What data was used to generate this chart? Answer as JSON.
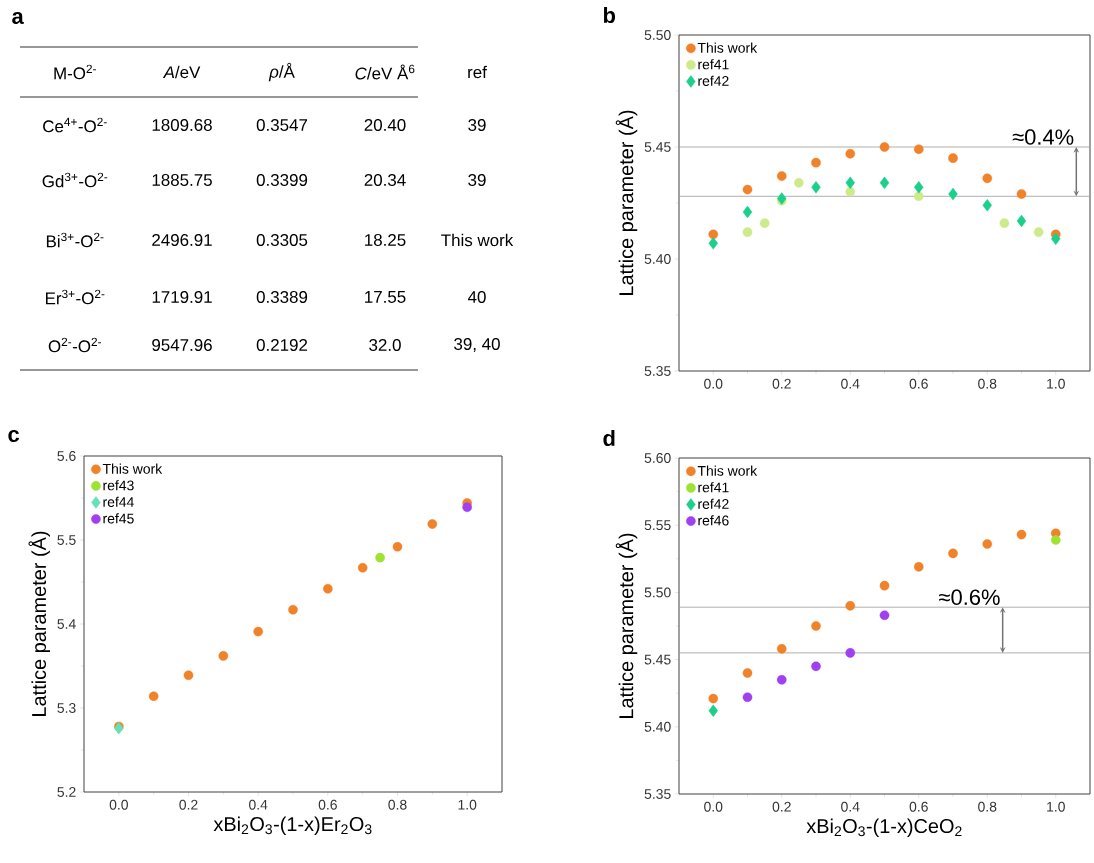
{
  "chart_data": [
    {
      "type": "other",
      "title": "a",
      "categories": [
        "M-O$^{2-}$",
        "*A*/eV",
        "*ρ*/Å",
        "*C*/eV Å$^{6}$",
        "ref"
      ],
      "annotations": [
        "Ce$^{4+}$-O$^{2-}$",
        "1809.68",
        "0.3547",
        "20.40",
        "39",
        "Gd$^{3+}$-O$^{2-}$",
        "1885.75",
        "0.3399",
        "20.34",
        "39",
        "Bi$^{3+}$-O$^{2-}$",
        "2496.91",
        "0.3305",
        "18.25",
        "This work",
        "Er$^{3+}$-O$^{2-}$",
        "1719.91",
        "0.3389",
        "17.55",
        "40",
        "O$^{2-}$-O$^{2-}$",
        "9547.96",
        "0.2192",
        "32.0",
        "39, 40"
      ]
    },
    {
      "type": "scatter",
      "title": "b",
      "ylabel": "Lattice parameter (Å)",
      "xlim": [
        -0.1,
        1.1
      ],
      "ylim": [
        5.35,
        5.5
      ],
      "xticks": [
        {
          "value": 0,
          "label": "0.0"
        },
        {
          "value": 0.2,
          "label": "0.2"
        },
        {
          "value": 0.4,
          "label": "0.4"
        },
        {
          "value": 0.6,
          "label": "0.6"
        },
        {
          "value": 0.8,
          "label": "0.8"
        },
        {
          "value": 1,
          "label": "1.0"
        }
      ],
      "yticks": [
        {
          "value": 5.35,
          "label": "5.35"
        },
        {
          "value": 5.4,
          "label": "5.40"
        },
        {
          "value": 5.45,
          "label": "5.45"
        },
        {
          "value": 5.5,
          "label": "5.50"
        }
      ],
      "legend": "top left",
      "grid": false,
      "ref_lines": [
        {
          "axis": "y",
          "value": 5.45,
          "label": null,
          "color": "#9a9a9a"
        },
        {
          "axis": "y",
          "value": 5.428,
          "label": null,
          "color": "#9a9a9a"
        }
      ],
      "annotations": [
        {
          "text": "≈0.4%",
          "x": 1.06,
          "y": 5.45
        }
      ],
      "series": [
        {
          "name": "This work",
          "color": "#f0822a",
          "marker": "circle",
          "x": [
            0,
            0.1,
            0.2,
            0.3,
            0.4,
            0.5,
            0.6,
            0.7,
            0.8,
            0.9,
            1.0
          ],
          "values": [
            5.411,
            5.431,
            5.437,
            5.443,
            5.447,
            5.45,
            5.449,
            5.445,
            5.436,
            5.429,
            5.411
          ]
        },
        {
          "name": "ref41",
          "color": "#cdeb8b",
          "marker": "circle",
          "x": [
            0.1,
            0.15,
            0.2,
            0.25,
            0.4,
            0.6,
            0.85,
            0.95
          ],
          "values": [
            5.412,
            5.416,
            5.426,
            5.434,
            5.43,
            5.428,
            5.416,
            5.412
          ]
        },
        {
          "name": "ref42",
          "color": "#1ccf8a",
          "marker": "diamond",
          "x": [
            0,
            0.1,
            0.2,
            0.3,
            0.4,
            0.5,
            0.6,
            0.7,
            0.8,
            0.9,
            1.0
          ],
          "values": [
            5.407,
            5.421,
            5.427,
            5.432,
            5.434,
            5.434,
            5.432,
            5.429,
            5.424,
            5.417,
            5.409
          ]
        }
      ]
    },
    {
      "type": "scatter",
      "title": "c",
      "ylabel": "Lattice parameter (Å)",
      "xlabel": "xBi$_{2}$O$_{3}$-(1-x)Er$_{2}$O$_{3}$",
      "xlim": [
        -0.1,
        1.1
      ],
      "ylim": [
        5.2,
        5.6
      ],
      "xticks": [
        {
          "value": 0,
          "label": "0.0"
        },
        {
          "value": 0.2,
          "label": "0.2"
        },
        {
          "value": 0.4,
          "label": "0.4"
        },
        {
          "value": 0.6,
          "label": "0.6"
        },
        {
          "value": 0.8,
          "label": "0.8"
        },
        {
          "value": 1,
          "label": "1.0"
        }
      ],
      "yticks": [
        5.2,
        5.3,
        5.4,
        5.5,
        5.6
      ],
      "legend": "top left",
      "grid": false,
      "series": [
        {
          "name": "This work",
          "color": "#f0822a",
          "marker": "circle",
          "x": [
            0,
            0.1,
            0.2,
            0.3,
            0.4,
            0.5,
            0.6,
            0.7,
            0.8,
            0.9,
            1.0
          ],
          "values": [
            5.278,
            5.314,
            5.339,
            5.362,
            5.391,
            5.417,
            5.442,
            5.467,
            5.492,
            5.519,
            5.544
          ]
        },
        {
          "name": "ref43",
          "color": "#9ee334",
          "marker": "circle",
          "x": [
            0.75
          ],
          "values": [
            5.479
          ]
        },
        {
          "name": "ref44",
          "color": "#66e0b8",
          "marker": "diamond",
          "x": [
            0
          ],
          "values": [
            5.276
          ]
        },
        {
          "name": "ref45",
          "color": "#a040f0",
          "marker": "circle",
          "x": [
            1.0
          ],
          "values": [
            5.539
          ]
        }
      ]
    },
    {
      "type": "scatter",
      "title": "d",
      "ylabel": "Lattice parameter (Å)",
      "xlabel": "xBi$_{2}$O$_{3}$-(1-x)CeO$_{2}$",
      "xlim": [
        -0.1,
        1.1
      ],
      "ylim": [
        5.35,
        5.6
      ],
      "xticks": [
        {
          "value": 0,
          "label": "0.0"
        },
        {
          "value": 0.2,
          "label": "0.2"
        },
        {
          "value": 0.4,
          "label": "0.4"
        },
        {
          "value": 0.6,
          "label": "0.6"
        },
        {
          "value": 0.8,
          "label": "0.8"
        },
        {
          "value": 1,
          "label": "1.0"
        }
      ],
      "yticks": [
        {
          "value": 5.35,
          "label": "5.35"
        },
        {
          "value": 5.4,
          "label": "5.40"
        },
        {
          "value": 5.45,
          "label": "5.45"
        },
        {
          "value": 5.5,
          "label": "5.50"
        },
        {
          "value": 5.55,
          "label": "5.55"
        },
        {
          "value": 5.6,
          "label": "5.60"
        }
      ],
      "legend": "top left",
      "grid": false,
      "ref_lines": [
        {
          "axis": "y",
          "value": 5.489,
          "label": null,
          "color": "#9a9a9a"
        },
        {
          "axis": "y",
          "value": 5.455,
          "label": null,
          "color": "#9a9a9a"
        }
      ],
      "annotations": [
        {
          "text": "≈0.6%",
          "x": 0.845,
          "y": 5.489
        }
      ],
      "series": [
        {
          "name": "This work",
          "color": "#f0822a",
          "marker": "circle",
          "x": [
            0,
            0.1,
            0.2,
            0.3,
            0.4,
            0.5,
            0.6,
            0.7,
            0.8,
            0.9,
            1.0
          ],
          "values": [
            5.421,
            5.44,
            5.458,
            5.475,
            5.49,
            5.505,
            5.519,
            5.529,
            5.536,
            5.543,
            5.544
          ]
        },
        {
          "name": "ref41",
          "color": "#9ee334",
          "marker": "circle",
          "x": [
            1.0
          ],
          "values": [
            5.539
          ]
        },
        {
          "name": "ref42",
          "color": "#1ccf8a",
          "marker": "diamond",
          "x": [
            0
          ],
          "values": [
            5.412
          ]
        },
        {
          "name": "ref46",
          "color": "#a040f0",
          "marker": "circle",
          "x": [
            0.1,
            0.2,
            0.3,
            0.4,
            0.5
          ],
          "values": [
            5.422,
            5.435,
            5.445,
            5.455,
            5.483
          ]
        }
      ]
    }
  ]
}
